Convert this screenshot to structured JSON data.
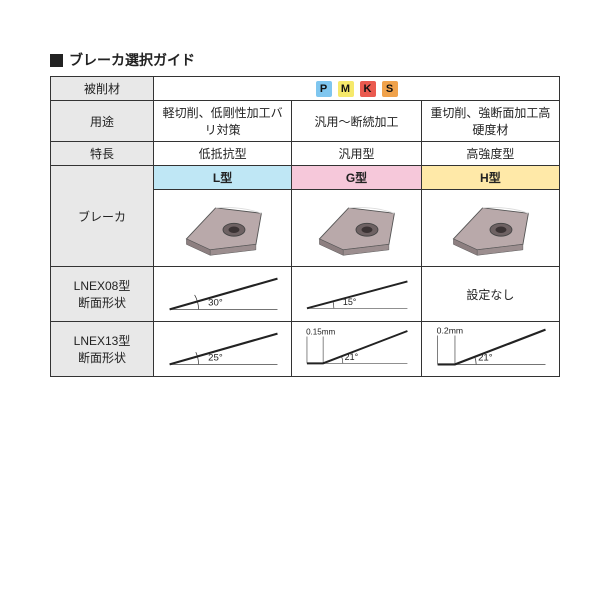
{
  "title": "ブレーカ選択ガイド",
  "rows": {
    "material": "被削材",
    "use": "用途",
    "feature": "特長",
    "breaker": "ブレーカ",
    "lnex08": "LNEX08型\n断面形状",
    "lnex13": "LNEX13型\n断面形状"
  },
  "material_codes": [
    {
      "letter": "P",
      "bg": "#7fc6ef"
    },
    {
      "letter": "M",
      "bg": "#f6e96b"
    },
    {
      "letter": "K",
      "bg": "#ea5a4f"
    },
    {
      "letter": "S",
      "bg": "#f0a24b"
    }
  ],
  "columns": [
    {
      "use": "軽切削、低剛性加工バリ対策",
      "feature": "低抵抗型",
      "type_label": "L型",
      "type_bg": "#bfe7f5",
      "insert_shape_color": "#b9a9aa",
      "lnex08": {
        "angle": "30°",
        "slope": 30,
        "land_mm": null
      },
      "lnex13": {
        "angle": "25°",
        "slope": 25,
        "land_mm": null
      }
    },
    {
      "use": "汎用～断続加工",
      "feature": "汎用型",
      "type_label": "G型",
      "type_bg": "#f6c8da",
      "insert_shape_color": "#b9a9aa",
      "lnex08": {
        "angle": "15°",
        "slope": 15,
        "land_mm": null
      },
      "lnex13": {
        "angle": "21°",
        "slope": 21,
        "land_mm": "0.15mm"
      }
    },
    {
      "use": "重切削、強断面加工高硬度材",
      "feature": "高強度型",
      "type_label": "H型",
      "type_bg": "#ffe9a8",
      "insert_shape_color": "#b9a9aa",
      "lnex08": {
        "text": "設定なし"
      },
      "lnex13": {
        "angle": "21°",
        "slope": 21,
        "land_mm": "0.2mm"
      }
    }
  ],
  "style": {
    "border_color": "#333333",
    "row_label_bg": "#e8e8e8",
    "profile_line_color": "#222222",
    "arc_color": "#222222"
  }
}
